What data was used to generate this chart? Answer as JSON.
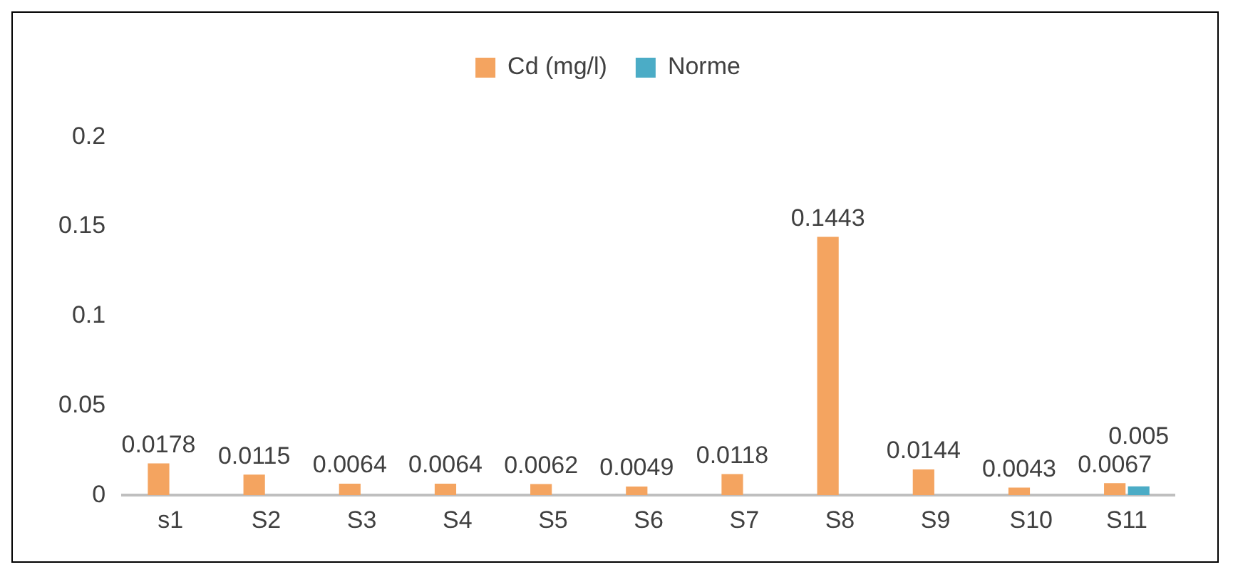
{
  "chart_data": {
    "type": "bar",
    "categories": [
      "s1",
      "S2",
      "S3",
      "S4",
      "S5",
      "S6",
      "S7",
      "S8",
      "S9",
      "S10",
      "S11"
    ],
    "series": [
      {
        "name": "Cd (mg/l)",
        "color": "#f4a460",
        "values": [
          0.0178,
          0.0115,
          0.0064,
          0.0064,
          0.0062,
          0.0049,
          0.0118,
          0.1443,
          0.0144,
          0.0043,
          0.0067
        ]
      },
      {
        "name": "Norme",
        "color": "#4bacc6",
        "values": [
          null,
          null,
          null,
          null,
          null,
          null,
          null,
          null,
          null,
          null,
          0.005
        ]
      }
    ],
    "ylim": [
      0,
      0.2
    ],
    "yticks": [
      0,
      0.05,
      0.1,
      0.15,
      0.2
    ],
    "grid": false,
    "legend": "top",
    "data_labels": true
  }
}
